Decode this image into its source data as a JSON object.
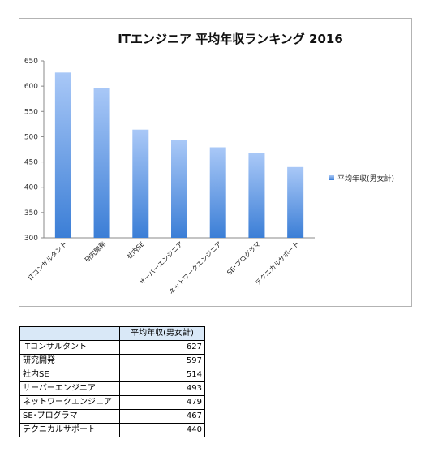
{
  "chart_data": {
    "type": "bar",
    "title": "ITエンジニア 平均年収ランキング 2016",
    "categories": [
      "ITコンサルタント",
      "研究開発",
      "社内SE",
      "サーバーエンジニア",
      "ネットワークエンジニア",
      "SE･プログラマ",
      "テクニカルサポート"
    ],
    "series": [
      {
        "name": "平均年収(男女計)",
        "values": [
          627,
          597,
          514,
          493,
          479,
          467,
          440
        ]
      }
    ],
    "ylim": [
      300,
      650
    ],
    "yticks": [
      "300",
      "350",
      "400",
      "450",
      "500",
      "550",
      "600",
      "650"
    ],
    "legend_position": "right",
    "grid": false,
    "bar_color_top": "#a9c8f7",
    "bar_color_bottom": "#3b7ed6"
  },
  "table": {
    "header": "平均年収(男女計)",
    "rows": [
      {
        "label": "ITコンサルタント",
        "value": "627"
      },
      {
        "label": "研究開発",
        "value": "597"
      },
      {
        "label": "社内SE",
        "value": "514"
      },
      {
        "label": "サーバーエンジニア",
        "value": "493"
      },
      {
        "label": "ネットワークエンジニア",
        "value": "479"
      },
      {
        "label": "SE･プログラマ",
        "value": "467"
      },
      {
        "label": "テクニカルサポート",
        "value": "440"
      }
    ]
  }
}
